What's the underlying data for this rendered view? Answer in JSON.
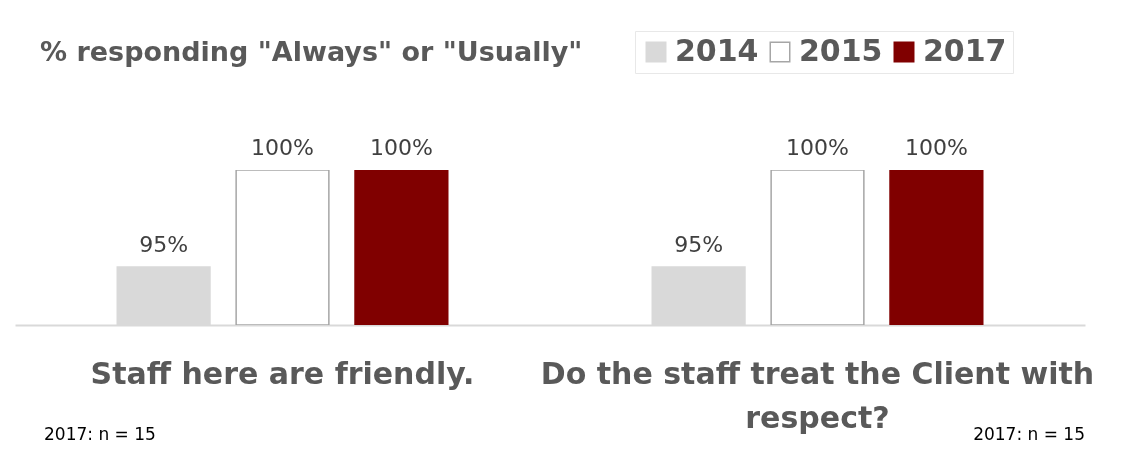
{
  "chart_data": {
    "type": "bar",
    "title": "% responding \"Always\" or \"Usually\"",
    "categories": [
      "Staff here are friendly.",
      "Do the staff treat the Client with respect?"
    ],
    "series": [
      {
        "name": "2014",
        "color": "#d9d9d9",
        "values": [
          95,
          95
        ],
        "value_labels": [
          "95%",
          "95%"
        ]
      },
      {
        "name": "2015",
        "color": "#ffffff",
        "values": [
          100,
          100
        ],
        "value_labels": [
          "100%",
          "100%"
        ]
      },
      {
        "name": "2017",
        "color": "#800000",
        "values": [
          100,
          100
        ],
        "value_labels": [
          "100%",
          "100%"
        ]
      }
    ],
    "ylim": [
      92,
      100
    ],
    "tick_labels": "x",
    "legend": "top right",
    "grid": false,
    "annotations": [
      "2017: n = 15",
      "2017: n = 15"
    ]
  }
}
